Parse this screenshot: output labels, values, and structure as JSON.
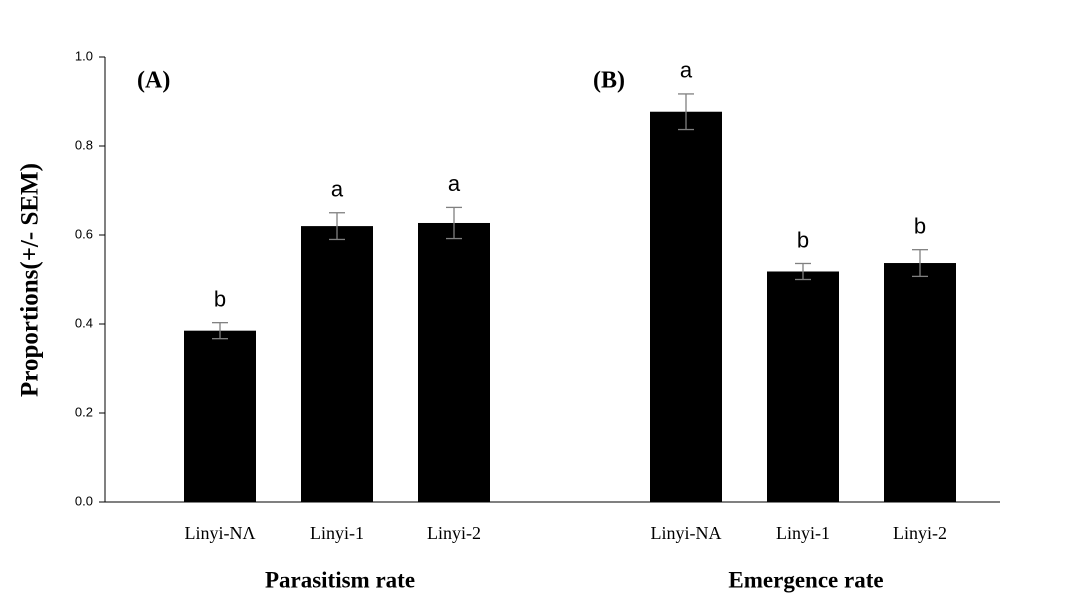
{
  "chart_data": {
    "type": "bar",
    "ylabel": "Proportions(+/- SEM)",
    "ylim": [
      0,
      1
    ],
    "yticks": [
      {
        "value": 0,
        "label": "0.0"
      },
      0.2,
      0.4,
      0.6,
      0.8,
      {
        "value": 1,
        "label": "1.0"
      }
    ],
    "color": "#000000",
    "error_color": "#808080",
    "groups": [
      {
        "name": "Parasitism rate",
        "panel": "(A)",
        "categories": [
          "Linyi-NΛ",
          "Linyi-1",
          "Linyi-2"
        ],
        "values": [
          0.385,
          0.62,
          0.627
        ],
        "errors": [
          0.018,
          0.03,
          0.035
        ],
        "annotations": [
          "b",
          "a",
          "a"
        ]
      },
      {
        "name": "Emergence rate",
        "panel": "(B)",
        "categories": [
          "Linyi-NA",
          "Linyi-1",
          "Linyi-2"
        ],
        "values": [
          0.877,
          0.518,
          0.537
        ],
        "errors": [
          0.04,
          0.018,
          0.03
        ],
        "annotations": [
          "a",
          "b",
          "b"
        ]
      }
    ]
  }
}
